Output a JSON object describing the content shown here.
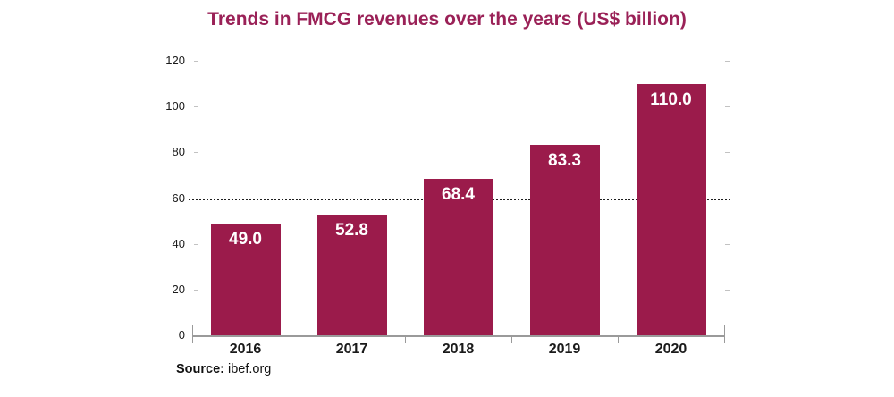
{
  "title": {
    "text": "Trends in FMCG revenues over the years (US$ billion)",
    "color": "#9A2157"
  },
  "source": {
    "label": "Source:",
    "text": "ibef.org"
  },
  "chart_data": {
    "type": "bar",
    "title": "Trends in FMCG revenues over the years (US$ billion)",
    "categories": [
      "2016",
      "2017",
      "2018",
      "2019",
      "2020"
    ],
    "values": [
      49.0,
      52.8,
      68.4,
      83.3,
      110.0
    ],
    "value_labels": [
      "49.0",
      "52.8",
      "68.4",
      "83.3",
      "110.0"
    ],
    "xlabel": "",
    "ylabel": "",
    "ylim": [
      0,
      120
    ],
    "yticks": [
      0,
      20,
      40,
      60,
      80,
      100,
      120
    ],
    "reference_line_y": 60,
    "grid": "off",
    "legend": "none",
    "bar_color": "#9B1B4B",
    "value_label_color": "#ffffff",
    "axis_color": "#9a9a9a",
    "source": "Source: ibef.org"
  }
}
